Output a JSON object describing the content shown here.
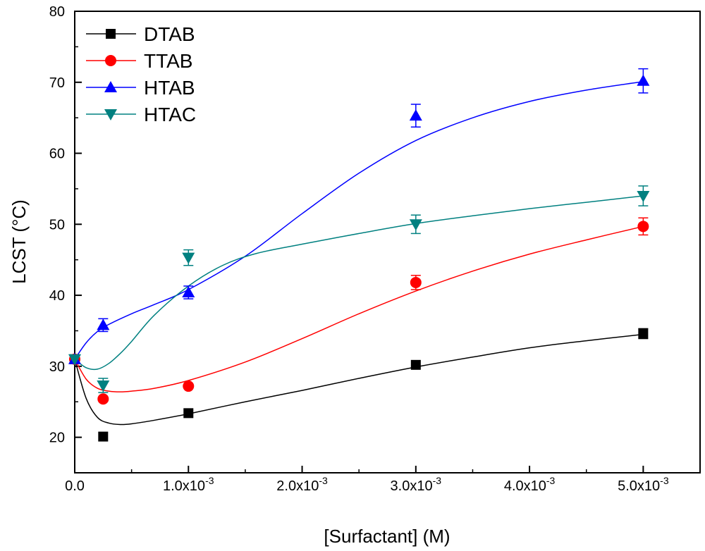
{
  "chart_data": {
    "type": "scatter",
    "title": "",
    "xlabel": "[Surfactant] (M)",
    "ylabel": "LCST (°C)",
    "xlim": [
      0,
      0.0055
    ],
    "ylim": [
      15,
      80
    ],
    "x_ticks": [
      {
        "value": 0,
        "label": "0.0",
        "exp": ""
      },
      {
        "value": 0.001,
        "label": "1.0x10",
        "exp": "-3"
      },
      {
        "value": 0.002,
        "label": "2.0x10",
        "exp": "-3"
      },
      {
        "value": 0.003,
        "label": "3.0x10",
        "exp": "-3"
      },
      {
        "value": 0.004,
        "label": "4.0x10",
        "exp": "-3"
      },
      {
        "value": 0.005,
        "label": "5.0x10",
        "exp": "-3"
      }
    ],
    "y_ticks": [
      {
        "value": 20,
        "label": "20"
      },
      {
        "value": 30,
        "label": "30"
      },
      {
        "value": 40,
        "label": "40"
      },
      {
        "value": 50,
        "label": "50"
      },
      {
        "value": 60,
        "label": "60"
      },
      {
        "value": 70,
        "label": "70"
      },
      {
        "value": 80,
        "label": "80"
      }
    ],
    "legend_position": "top-left",
    "series": [
      {
        "name": "DTAB",
        "color": "#000000",
        "marker": "square",
        "x": [
          0,
          0.00025,
          0.001,
          0.003,
          0.005
        ],
        "y": [
          31.0,
          20.1,
          23.4,
          30.2,
          34.6
        ],
        "err": [
          0,
          0,
          0,
          0,
          0.7
        ],
        "fit": [
          [
            0,
            31.0
          ],
          [
            0.0001,
            25.5
          ],
          [
            0.0002,
            22.8
          ],
          [
            0.0003,
            22.0
          ],
          [
            0.0004,
            21.8
          ],
          [
            0.0005,
            21.9
          ],
          [
            0.0007,
            22.4
          ],
          [
            0.001,
            23.3
          ],
          [
            0.0015,
            25.0
          ],
          [
            0.002,
            26.6
          ],
          [
            0.0025,
            28.3
          ],
          [
            0.003,
            29.9
          ],
          [
            0.0035,
            31.3
          ],
          [
            0.004,
            32.6
          ],
          [
            0.0045,
            33.6
          ],
          [
            0.005,
            34.5
          ]
        ]
      },
      {
        "name": "TTAB",
        "color": "#ff0000",
        "marker": "circle",
        "x": [
          0,
          0.00025,
          0.001,
          0.003,
          0.005
        ],
        "y": [
          31.0,
          25.4,
          27.2,
          41.8,
          49.7
        ],
        "err": [
          0,
          0,
          0,
          1.0,
          1.2
        ],
        "fit": [
          [
            0,
            31.0
          ],
          [
            0.0001,
            28.2
          ],
          [
            0.0002,
            26.9
          ],
          [
            0.0003,
            26.5
          ],
          [
            0.0004,
            26.4
          ],
          [
            0.0005,
            26.5
          ],
          [
            0.0007,
            26.9
          ],
          [
            0.001,
            28.0
          ],
          [
            0.0015,
            30.6
          ],
          [
            0.002,
            33.9
          ],
          [
            0.0025,
            37.4
          ],
          [
            0.003,
            40.6
          ],
          [
            0.0035,
            43.4
          ],
          [
            0.004,
            45.8
          ],
          [
            0.0045,
            47.8
          ],
          [
            0.005,
            49.7
          ]
        ]
      },
      {
        "name": "HTAB",
        "color": "#0000ff",
        "marker": "triangle-up",
        "x": [
          0,
          0.00025,
          0.001,
          0.003,
          0.005
        ],
        "y": [
          31.0,
          35.8,
          40.4,
          65.3,
          70.2
        ],
        "err": [
          0,
          0.9,
          0.9,
          1.6,
          1.7
        ],
        "fit": [
          [
            0,
            31.0
          ],
          [
            0.0001,
            33.3
          ],
          [
            0.0002,
            34.9
          ],
          [
            0.0003,
            35.9
          ],
          [
            0.0005,
            37.4
          ],
          [
            0.0007,
            38.7
          ],
          [
            0.001,
            40.8
          ],
          [
            0.0015,
            45.5
          ],
          [
            0.002,
            51.5
          ],
          [
            0.0025,
            57.2
          ],
          [
            0.003,
            61.8
          ],
          [
            0.0035,
            65.0
          ],
          [
            0.004,
            67.3
          ],
          [
            0.0045,
            68.9
          ],
          [
            0.005,
            70.1
          ]
        ]
      },
      {
        "name": "HTAC",
        "color": "#008080",
        "marker": "triangle-down",
        "x": [
          0,
          0.00025,
          0.001,
          0.003,
          0.005
        ],
        "y": [
          31.0,
          27.3,
          45.3,
          50.0,
          54.0
        ],
        "err": [
          0,
          1.0,
          1.1,
          1.3,
          1.4
        ],
        "fit": [
          [
            0,
            31.0
          ],
          [
            0.0001,
            29.8
          ],
          [
            0.0002,
            29.6
          ],
          [
            0.0003,
            30.4
          ],
          [
            0.0004,
            31.8
          ],
          [
            0.0005,
            33.5
          ],
          [
            0.0007,
            37.2
          ],
          [
            0.001,
            41.3
          ],
          [
            0.0013,
            44.2
          ],
          [
            0.0016,
            45.9
          ],
          [
            0.002,
            47.2
          ],
          [
            0.0025,
            48.7
          ],
          [
            0.003,
            50.1
          ],
          [
            0.0035,
            51.2
          ],
          [
            0.004,
            52.2
          ],
          [
            0.0045,
            53.1
          ],
          [
            0.005,
            54.0
          ]
        ]
      }
    ]
  }
}
